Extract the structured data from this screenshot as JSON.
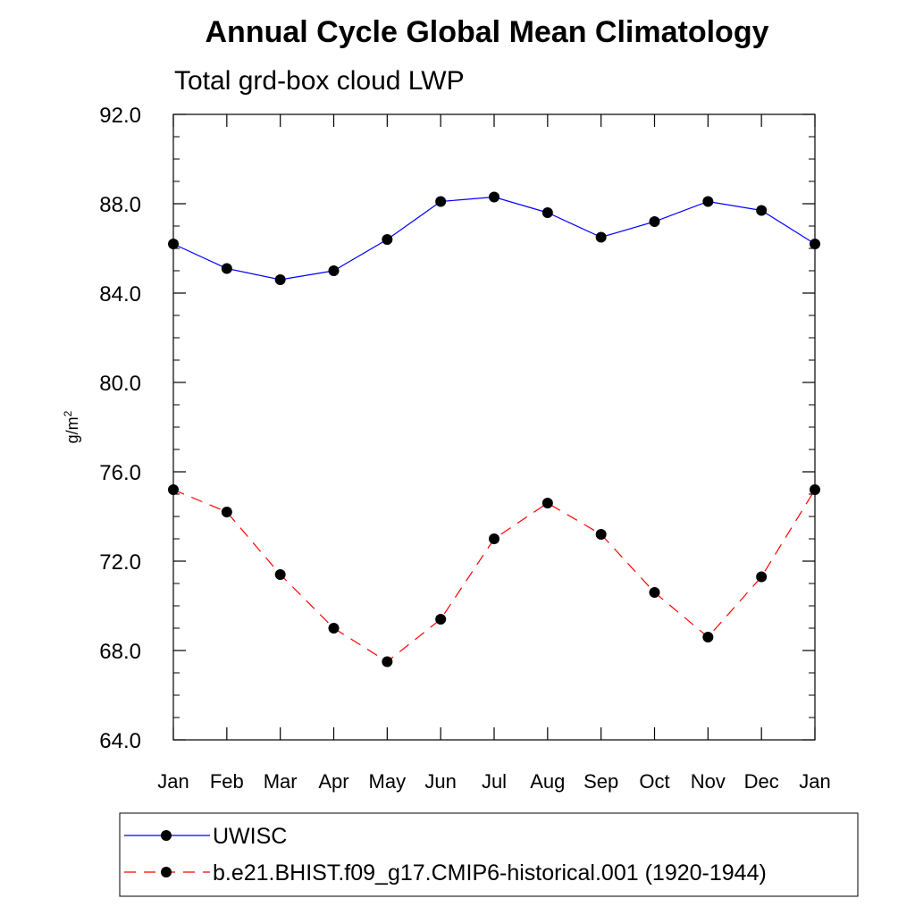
{
  "chart_data": {
    "type": "line",
    "title": "Annual Cycle Global Mean Climatology",
    "subtitle": "Total grd-box cloud LWP",
    "ylabel": "g/m",
    "ylabel_superscript": "2",
    "ylim": [
      64.0,
      92.0
    ],
    "yticks": [
      "64.0",
      "68.0",
      "72.0",
      "76.0",
      "80.0",
      "84.0",
      "88.0",
      "92.0"
    ],
    "ytick_values": [
      64,
      68,
      72,
      76,
      80,
      84,
      88,
      92
    ],
    "categories": [
      "Jan",
      "Feb",
      "Mar",
      "Apr",
      "May",
      "Jun",
      "Jul",
      "Aug",
      "Sep",
      "Oct",
      "Nov",
      "Dec",
      "Jan"
    ],
    "grid": false,
    "legend_position": "bottom",
    "series": [
      {
        "name": "UWISC",
        "color": "#0000ff",
        "line_style": "solid",
        "marker": "filled-circle",
        "values": [
          86.2,
          85.1,
          84.6,
          85.0,
          86.4,
          88.1,
          88.3,
          87.6,
          86.5,
          87.2,
          88.1,
          87.7,
          86.2
        ]
      },
      {
        "name": "b.e21.BHIST.f09_g17.CMIP6-historical.001 (1920-1944)",
        "color": "#ff0000",
        "line_style": "dashed",
        "marker": "filled-circle",
        "values": [
          75.2,
          74.2,
          71.4,
          69.0,
          67.5,
          69.4,
          73.0,
          74.6,
          73.2,
          70.6,
          68.6,
          71.3,
          75.2
        ]
      }
    ]
  }
}
